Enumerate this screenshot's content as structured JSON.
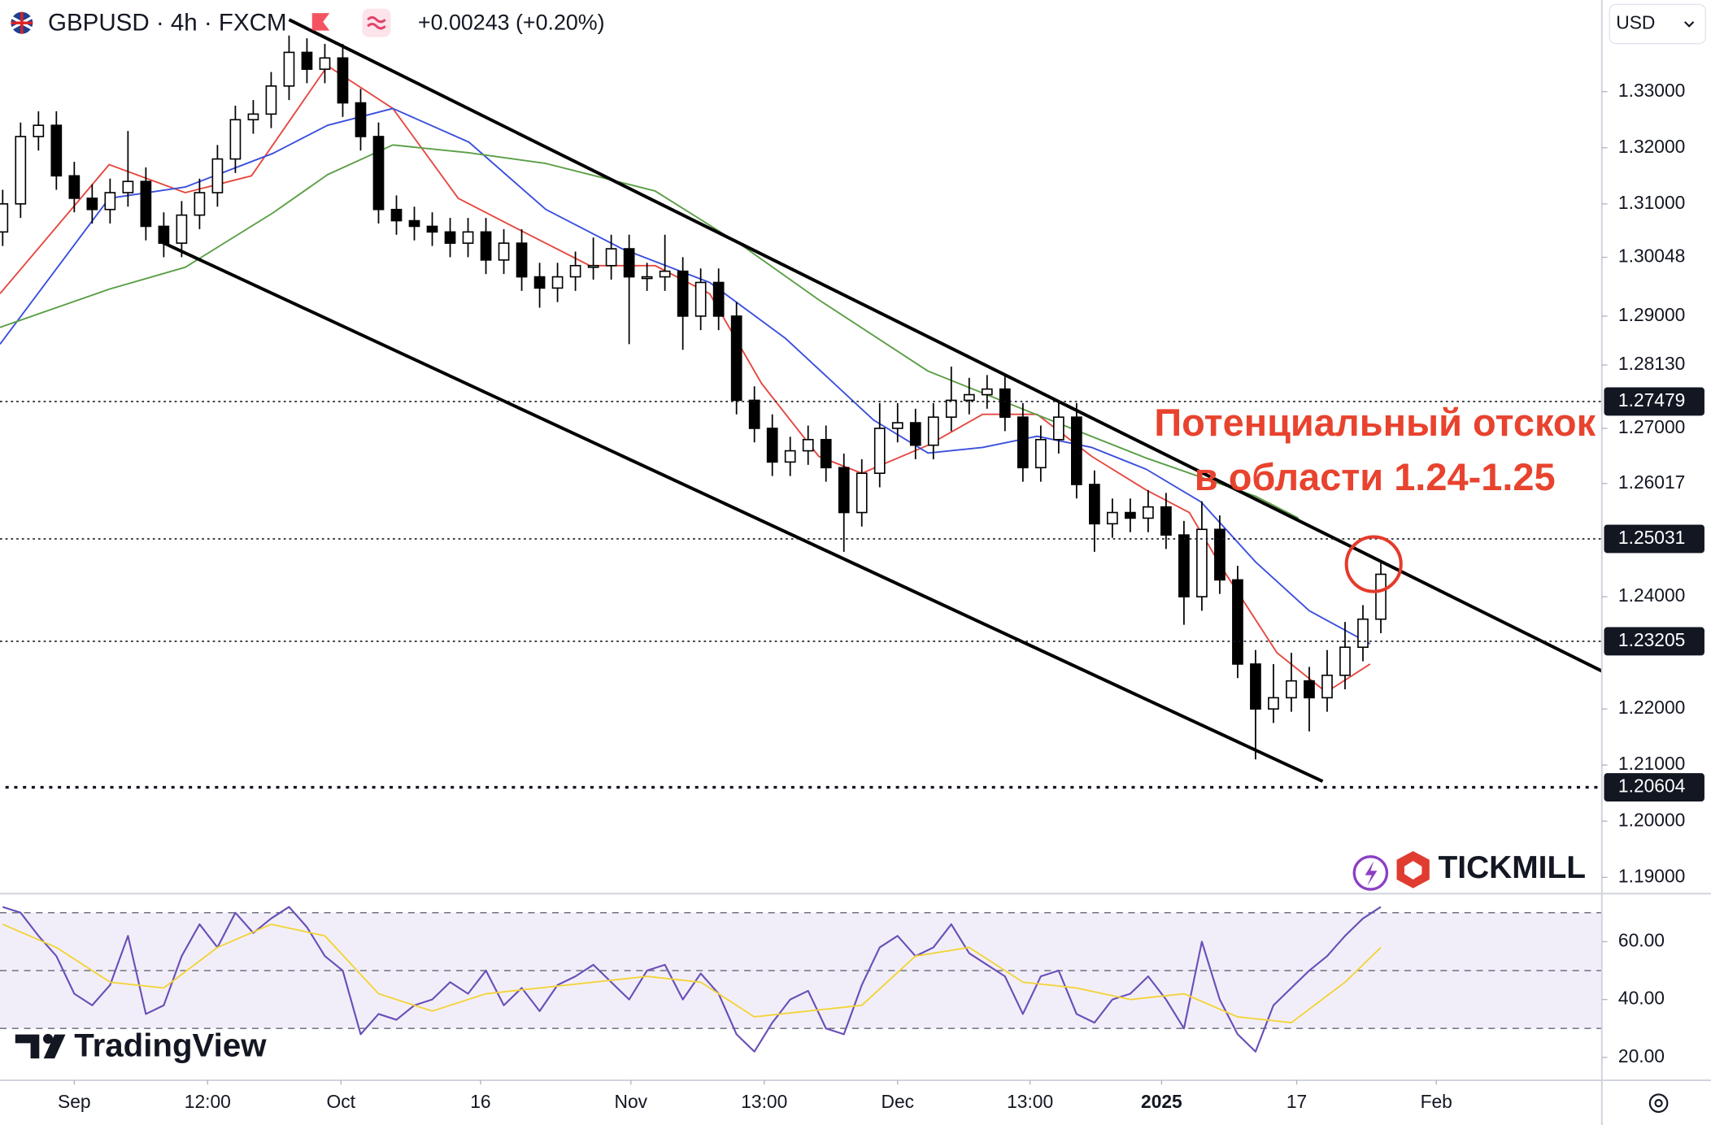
{
  "chart_data": [
    {
      "type": "candlestick",
      "title": "GBPUSD · 4h · FXCM",
      "subtitle": "+0.00243 (+0.20%)",
      "currency": "USD",
      "annotation": [
        "Потенциальный отскок",
        "в области 1.24-1.25"
      ],
      "annotation_color": "#e8432e",
      "up_color": "#ffffff",
      "down_color": "#000000",
      "x": [
        -8,
        -6,
        -4,
        -2,
        0,
        2,
        4,
        6,
        8,
        10,
        12,
        14,
        16,
        18,
        20,
        22,
        24,
        26,
        28,
        30,
        32,
        34,
        36,
        38,
        40,
        42,
        44,
        46,
        48,
        50,
        52,
        54,
        56,
        58,
        60,
        62,
        64,
        66,
        68,
        70,
        72,
        74,
        76,
        78,
        80,
        82,
        84,
        86,
        88,
        90,
        92,
        94,
        96,
        98,
        100,
        102,
        104,
        106,
        108,
        110,
        112,
        114,
        116,
        118,
        120,
        122,
        124,
        126,
        128,
        130,
        132,
        134,
        136,
        138,
        140,
        142,
        144,
        146
      ],
      "open": [
        1.305,
        1.31,
        1.322,
        1.324,
        1.315,
        1.311,
        1.309,
        1.312,
        1.314,
        1.306,
        1.303,
        1.308,
        1.312,
        1.318,
        1.325,
        1.326,
        1.331,
        1.337,
        1.334,
        1.336,
        1.328,
        1.322,
        1.309,
        1.307,
        1.306,
        1.305,
        1.303,
        1.305,
        1.3,
        1.303,
        1.297,
        1.295,
        1.297,
        1.299,
        1.299,
        1.302,
        1.297,
        1.297,
        1.298,
        1.29,
        1.296,
        1.29,
        1.275,
        1.27,
        1.264,
        1.266,
        1.268,
        1.263,
        1.255,
        1.262,
        1.27,
        1.271,
        1.267,
        1.272,
        1.275,
        1.276,
        1.277,
        1.272,
        1.263,
        1.268,
        1.272,
        1.26,
        1.253,
        1.255,
        1.254,
        1.256,
        1.251,
        1.24,
        1.252,
        1.243,
        1.228,
        1.22,
        1.222,
        1.225,
        1.222,
        1.226,
        1.231,
        1.236
      ],
      "high": [
        1.3125,
        1.3245,
        1.3265,
        1.3265,
        1.3175,
        1.3135,
        1.3145,
        1.323,
        1.3165,
        1.3085,
        1.3105,
        1.3145,
        1.3205,
        1.3275,
        1.3285,
        1.3335,
        1.34,
        1.3395,
        1.3385,
        1.3385,
        1.3305,
        1.3245,
        1.3115,
        1.3095,
        1.3085,
        1.3075,
        1.3075,
        1.3075,
        1.3055,
        1.3055,
        1.2995,
        1.2995,
        1.3015,
        1.304,
        1.3045,
        1.3045,
        1.2995,
        1.3045,
        1.3005,
        1.2985,
        1.2985,
        1.2925,
        1.2775,
        1.2725,
        1.2685,
        1.2705,
        1.2705,
        1.2655,
        1.2645,
        1.2745,
        1.2745,
        1.2735,
        1.2745,
        1.281,
        1.279,
        1.2795,
        1.2795,
        1.2745,
        1.2705,
        1.2745,
        1.2745,
        1.2625,
        1.2575,
        1.2575,
        1.259,
        1.2585,
        1.2535,
        1.257,
        1.2545,
        1.2455,
        1.2305,
        1.228,
        1.23,
        1.2275,
        1.2305,
        1.2355,
        1.2385,
        1.246
      ],
      "low": [
        1.3025,
        1.3075,
        1.3195,
        1.3125,
        1.3085,
        1.3065,
        1.3065,
        1.3095,
        1.3035,
        1.3005,
        1.3005,
        1.3055,
        1.3095,
        1.3155,
        1.3225,
        1.3235,
        1.3285,
        1.3315,
        1.3315,
        1.3255,
        1.3195,
        1.3065,
        1.3045,
        1.3035,
        1.3025,
        1.3005,
        1.3005,
        1.2975,
        1.2975,
        1.2945,
        1.2915,
        1.2925,
        1.2945,
        1.2965,
        1.2965,
        1.285,
        1.2945,
        1.2945,
        1.284,
        1.2875,
        1.2875,
        1.2725,
        1.2675,
        1.2615,
        1.2615,
        1.2635,
        1.2605,
        1.248,
        1.2525,
        1.2595,
        1.2675,
        1.2645,
        1.2645,
        1.2695,
        1.2725,
        1.2735,
        1.2695,
        1.2605,
        1.2605,
        1.2655,
        1.2575,
        1.248,
        1.2505,
        1.2515,
        1.2515,
        1.2485,
        1.235,
        1.2375,
        1.2405,
        1.2255,
        1.211,
        1.2175,
        1.2195,
        1.216,
        1.2195,
        1.2235,
        1.2285,
        1.2335
      ],
      "close": [
        1.31,
        1.322,
        1.324,
        1.315,
        1.311,
        1.309,
        1.312,
        1.314,
        1.306,
        1.303,
        1.308,
        1.312,
        1.318,
        1.325,
        1.326,
        1.331,
        1.337,
        1.334,
        1.336,
        1.328,
        1.322,
        1.309,
        1.307,
        1.306,
        1.305,
        1.303,
        1.305,
        1.3,
        1.303,
        1.297,
        1.295,
        1.297,
        1.299,
        1.299,
        1.302,
        1.297,
        1.297,
        1.298,
        1.29,
        1.296,
        1.29,
        1.275,
        1.27,
        1.264,
        1.266,
        1.268,
        1.263,
        1.255,
        1.262,
        1.27,
        1.271,
        1.267,
        1.272,
        1.275,
        1.276,
        1.277,
        1.272,
        1.263,
        1.268,
        1.272,
        1.26,
        1.253,
        1.255,
        1.254,
        1.256,
        1.251,
        1.24,
        1.252,
        1.243,
        1.228,
        1.22,
        1.222,
        1.225,
        1.222,
        1.226,
        1.231,
        1.236,
        1.244
      ],
      "series": [
        {
          "color": "#e5483f",
          "x": [
            -8.3,
            3.9,
            12.4,
            19.8,
            28.3,
            35.6,
            42.9,
            50.2,
            57.6,
            64.9,
            71.0,
            76.8,
            83.2,
            88.0,
            95.4,
            101.5,
            107.6,
            113.7,
            119.8,
            124.6,
            128.3,
            134.4,
            139.9,
            144.8
          ],
          "values": [
            1.294,
            1.317,
            1.312,
            1.315,
            1.3346,
            1.327,
            1.311,
            1.305,
            1.299,
            1.299,
            1.294,
            1.278,
            1.265,
            1.262,
            1.267,
            1.2725,
            1.2725,
            1.265,
            1.259,
            1.255,
            1.245,
            1.23,
            1.223,
            1.228
          ]
        },
        {
          "color": "#3a4fdc",
          "x": [
            -8.3,
            3.9,
            12.4,
            22.2,
            28.3,
            35.6,
            44.1,
            52.7,
            61.2,
            71.0,
            79.5,
            89.3,
            95.4,
            101.5,
            107.6,
            113.7,
            119.8,
            125.9,
            132.0,
            138.0,
            144.8
          ],
          "values": [
            1.285,
            1.311,
            1.313,
            1.319,
            1.324,
            1.327,
            1.321,
            1.309,
            1.302,
            1.296,
            1.286,
            1.2715,
            1.2656,
            1.2666,
            1.2686,
            1.2666,
            1.2627,
            1.2569,
            1.2462,
            1.2375,
            1.2316
          ]
        },
        {
          "color": "#5a9e45",
          "x": [
            -8.3,
            3.9,
            12.4,
            22.2,
            28.3,
            35.6,
            44.1,
            52.7,
            64.9,
            74.6,
            83.2,
            95.4,
            107.6,
            119.8,
            132.0,
            136.8
          ],
          "values": [
            1.288,
            1.2948,
            1.2987,
            1.3084,
            1.3152,
            1.3205,
            1.3191,
            1.3172,
            1.3123,
            1.3026,
            1.2929,
            1.2802,
            1.2724,
            1.2647,
            1.2579,
            1.254
          ]
        }
      ],
      "trendlines": [
        {
          "color": "#000000",
          "x": [
            24.0,
            170.7
          ],
          "y": [
            1.34283,
            1.22675
          ]
        },
        {
          "color": "#000000",
          "x": [
            9.8,
            139.5
          ],
          "y": [
            1.30317,
            1.20711
          ]
        }
      ],
      "highlight": {
        "x": 145.2,
        "y": 1.2458,
        "color": "#e53a2b"
      },
      "levels": [
        {
          "value": 1.27479,
          "label": "1.27479"
        },
        {
          "value": 1.25031,
          "label": "1.25031"
        },
        {
          "value": 1.23205,
          "label": "1.23205"
        },
        {
          "value": 1.20604,
          "label": "1.20604"
        }
      ],
      "xlim": [
        -8.3,
        170.7
      ],
      "xticks": [
        {
          "value": 0,
          "label": "Sep"
        },
        {
          "value": 14.9,
          "label": "12:00"
        },
        {
          "value": 29.8,
          "label": "Oct"
        },
        {
          "value": 45.4,
          "label": "16"
        },
        {
          "value": 62.2,
          "label": "Nov"
        },
        {
          "value": 77.1,
          "label": "13:00"
        },
        {
          "value": 92.0,
          "label": "Dec"
        },
        {
          "value": 106.8,
          "label": "13:00"
        },
        {
          "value": 121.5,
          "label": "2025"
        },
        {
          "value": 136.6,
          "label": "17"
        },
        {
          "value": 152.2,
          "label": "Feb"
        }
      ],
      "ylim": [
        1.18728,
        1.34633
      ],
      "yticks": [
        {
          "value": 1.33,
          "label": "1.33000"
        },
        {
          "value": 1.32,
          "label": "1.32000"
        },
        {
          "value": 1.31,
          "label": "1.31000"
        },
        {
          "value": 1.30048,
          "label": "1.30048"
        },
        {
          "value": 1.29,
          "label": "1.29000"
        },
        {
          "value": 1.2813,
          "label": "1.28130"
        },
        {
          "value": 1.27,
          "label": "1.27000"
        },
        {
          "value": 1.26017,
          "label": "1.26017"
        },
        {
          "value": 1.24,
          "label": "1.24000"
        },
        {
          "value": 1.22,
          "label": "1.22000"
        },
        {
          "value": 1.21,
          "label": "1.21000"
        },
        {
          "value": 1.2,
          "label": "1.20000"
        },
        {
          "value": 1.19,
          "label": "1.19000"
        }
      ],
      "grid": false
    },
    {
      "type": "line",
      "xlim": [
        -8.3,
        170.7
      ],
      "ylim": [
        12.1,
        76.2
      ],
      "yticks": [
        {
          "value": 60,
          "label": "60.00"
        },
        {
          "value": 40,
          "label": "40.00"
        },
        {
          "value": 20,
          "label": "20.00"
        }
      ],
      "bands": [
        30,
        70
      ],
      "midline": 50,
      "band_color": "#7e57c2",
      "series": [
        {
          "color": "#6a4fb8",
          "x": [
            -8,
            -6,
            -4,
            -2,
            0,
            2,
            4,
            6,
            8,
            10,
            12,
            14,
            16,
            18,
            20,
            22,
            24,
            26,
            28,
            30,
            32,
            34,
            36,
            38,
            40,
            42,
            44,
            46,
            48,
            50,
            52,
            54,
            56,
            58,
            60,
            62,
            64,
            66,
            68,
            70,
            72,
            74,
            76,
            78,
            80,
            82,
            84,
            86,
            88,
            90,
            92,
            94,
            96,
            98,
            100,
            102,
            104,
            106,
            108,
            110,
            112,
            114,
            116,
            118,
            120,
            122,
            124,
            126,
            128,
            130,
            132,
            134,
            136,
            138,
            140,
            142,
            144,
            146
          ],
          "values": [
            72,
            70,
            62,
            55,
            42,
            38,
            45,
            62,
            35,
            38,
            55,
            66,
            58,
            70,
            63,
            68,
            72,
            65,
            55,
            50,
            28,
            35,
            33,
            38,
            40,
            46,
            42,
            50,
            38,
            44,
            36,
            45,
            48,
            52,
            46,
            40,
            50,
            52,
            40,
            49,
            42,
            28,
            22,
            32,
            40,
            43,
            30,
            28,
            45,
            58,
            62,
            55,
            58,
            66,
            56,
            52,
            48,
            35,
            48,
            50,
            35,
            32,
            40,
            42,
            48,
            40,
            30,
            60,
            40,
            28,
            22,
            38,
            44,
            50,
            55,
            62,
            68,
            72
          ]
        },
        {
          "color": "#f2d43a",
          "x": [
            -8,
            -2,
            4,
            10,
            16,
            22,
            28,
            34,
            40,
            46,
            52,
            58,
            64,
            70,
            76,
            82,
            88,
            94,
            100,
            106,
            112,
            118,
            124,
            130,
            136,
            142,
            146
          ],
          "values": [
            66,
            58,
            46,
            44,
            58,
            66,
            62,
            42,
            36,
            42,
            44,
            46,
            48,
            46,
            34,
            36,
            38,
            55,
            58,
            46,
            44,
            40,
            42,
            34,
            32,
            46,
            58
          ]
        }
      ],
      "grid": false
    }
  ],
  "branding": {
    "broker": "TICKMILL",
    "platform": "TradingView"
  }
}
